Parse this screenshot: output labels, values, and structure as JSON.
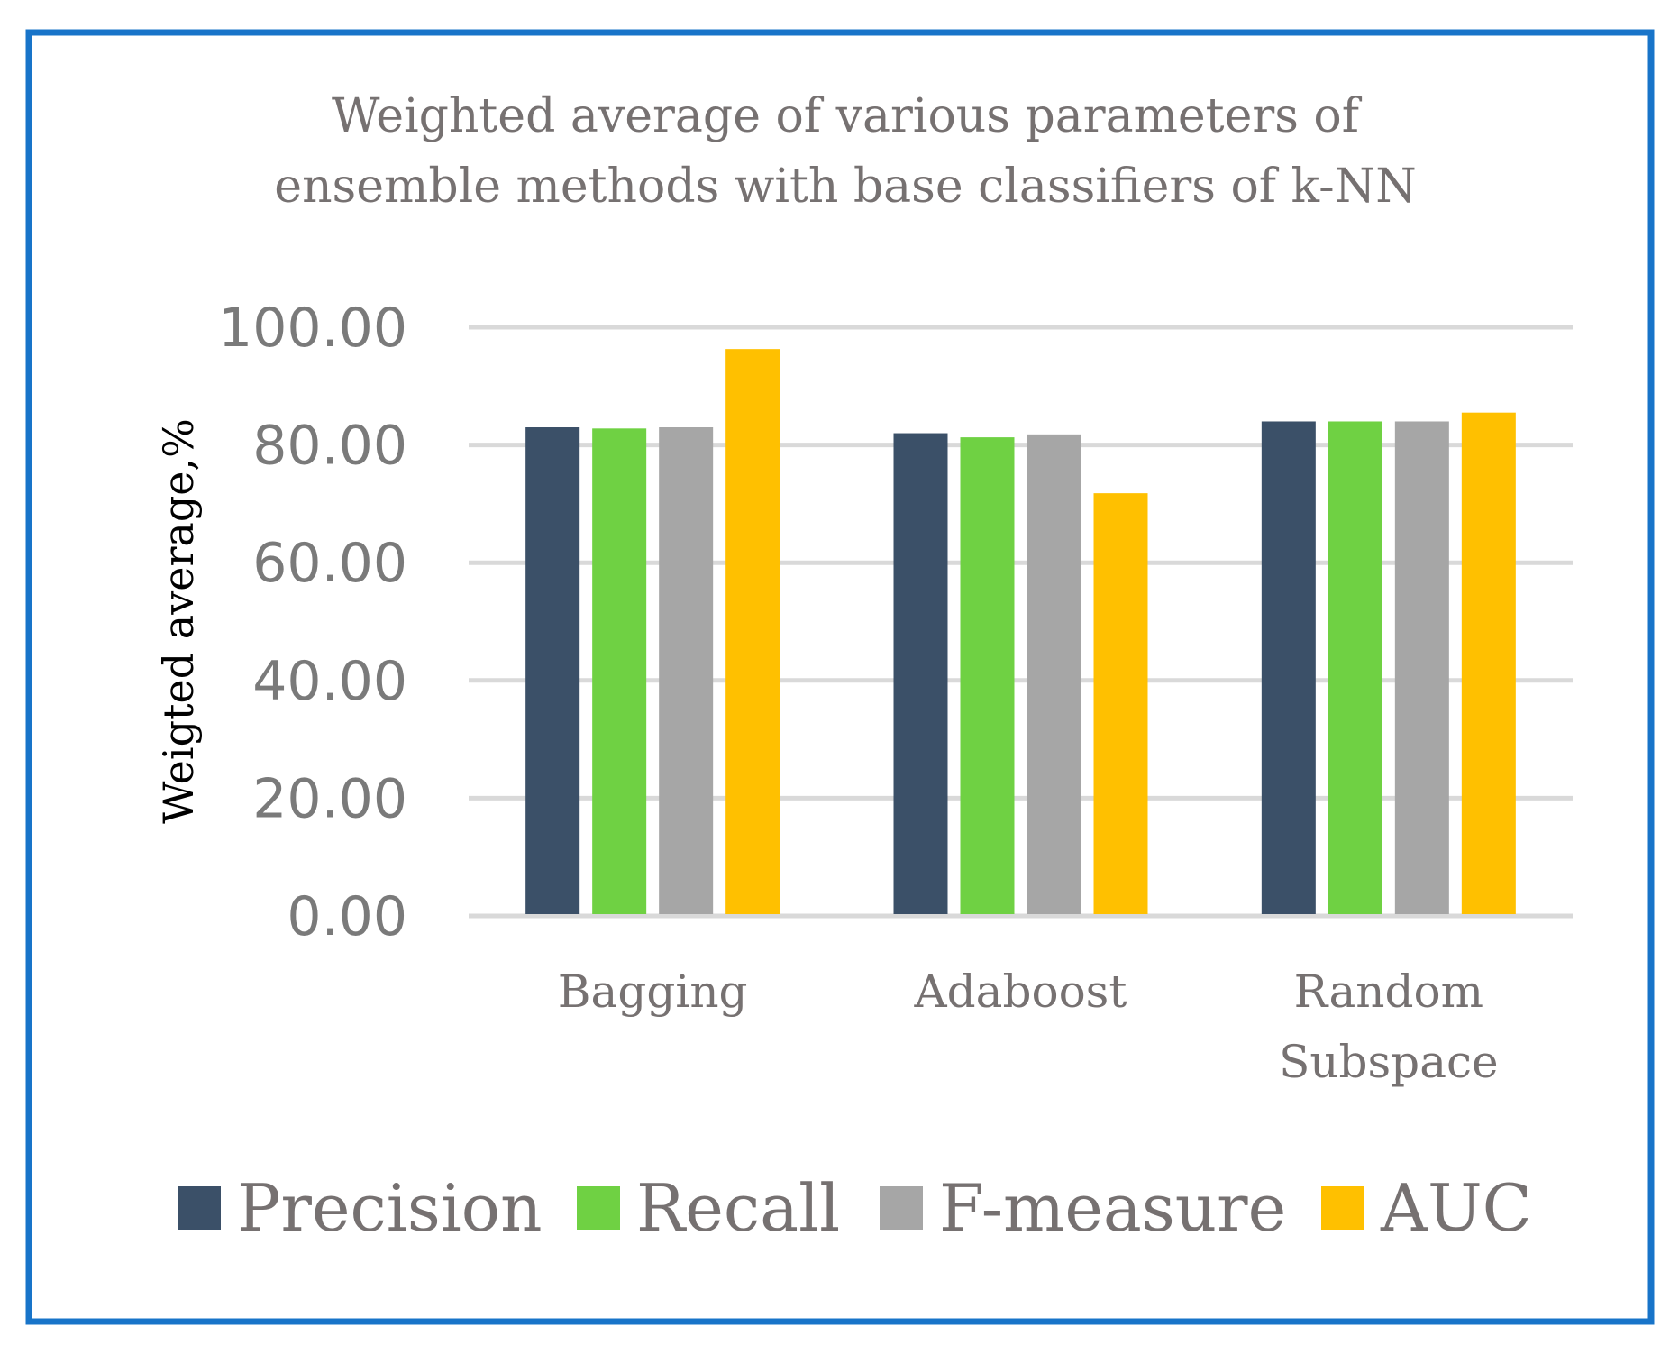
{
  "chart_data": {
    "type": "bar",
    "title": "Weighted average of various parameters of ensemble methods with base classifiers of k-NN",
    "title_lines": [
      "Weighted average of various parameters of",
      "ensemble methods with base classifiers of k-NN"
    ],
    "xlabel": "",
    "ylabel": "Weigted average,%",
    "ylim": [
      0,
      100
    ],
    "yticks": [
      "0.00",
      "20.00",
      "40.00",
      "60.00",
      "80.00",
      "100.00"
    ],
    "ytick_values": [
      0,
      20,
      40,
      60,
      80,
      100
    ],
    "grid": true,
    "legend_position": "bottom",
    "categories": [
      "Bagging",
      "Adaboost",
      "Random Subspace"
    ],
    "category_lines": [
      [
        "Bagging"
      ],
      [
        "Adaboost"
      ],
      [
        "Random",
        "Subspace"
      ]
    ],
    "series": [
      {
        "name": "Precision",
        "color": "#3b5068",
        "values": [
          83.0,
          82.0,
          84.0
        ]
      },
      {
        "name": "Recall",
        "color": "#6fd143",
        "values": [
          82.8,
          81.3,
          84.0
        ]
      },
      {
        "name": "F-measure",
        "color": "#a6a6a6",
        "values": [
          83.0,
          81.8,
          84.0
        ]
      },
      {
        "name": "AUC",
        "color": "#ffc000",
        "values": [
          96.3,
          71.8,
          85.5
        ]
      }
    ]
  },
  "colors": {
    "frame": "#1874c9",
    "gridline": "#d9d9d9",
    "text": "#767171"
  }
}
